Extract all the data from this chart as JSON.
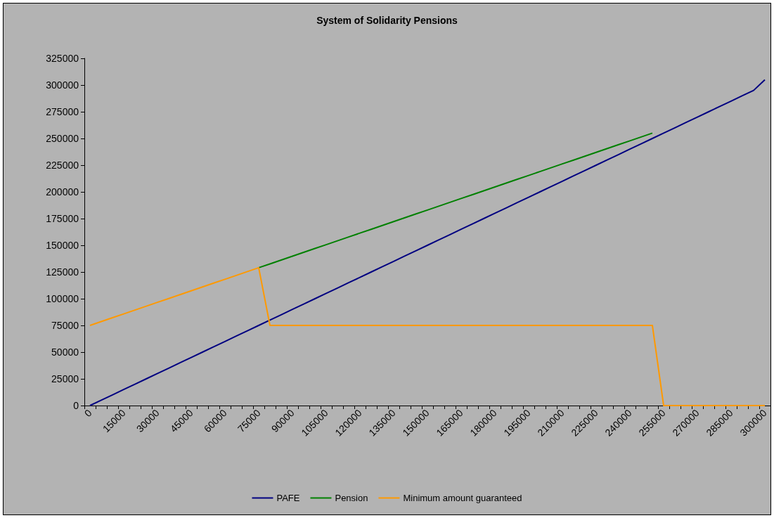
{
  "chart_data": {
    "type": "line",
    "title": "System of Solidarity Pensions",
    "categories": [
      "0",
      null,
      null,
      "15000",
      null,
      null,
      "30000",
      null,
      null,
      "45000",
      null,
      null,
      "60000",
      null,
      null,
      "75000",
      null,
      null,
      "90000",
      null,
      null,
      "105000",
      null,
      null,
      "120000",
      null,
      null,
      "135000",
      null,
      null,
      "150000",
      null,
      null,
      "165000",
      null,
      null,
      "180000",
      null,
      null,
      "195000",
      null,
      null,
      "210000",
      null,
      null,
      "225000",
      null,
      null,
      "240000",
      null,
      null,
      "255000",
      null,
      null,
      "270000",
      null,
      null,
      "285000",
      null,
      null,
      "300000"
    ],
    "series": [
      {
        "name": "PAFE",
        "color": "#000080",
        "values": [
          0,
          5000,
          10000,
          15000,
          20000,
          25000,
          30000,
          35000,
          40000,
          45000,
          50000,
          55000,
          60000,
          65000,
          70000,
          75000,
          80000,
          85000,
          90000,
          95000,
          100000,
          105000,
          110000,
          115000,
          120000,
          125000,
          130000,
          135000,
          140000,
          145000,
          150000,
          155000,
          160000,
          165000,
          170000,
          175000,
          180000,
          185000,
          190000,
          195000,
          200000,
          205000,
          210000,
          215000,
          220000,
          225000,
          230000,
          235000,
          240000,
          245000,
          250000,
          255000,
          260000,
          265000,
          270000,
          275000,
          280000,
          285000,
          290000,
          295000,
          305000
        ]
      },
      {
        "name": "Pension",
        "color": "#008000",
        "values": [
          null,
          null,
          null,
          null,
          null,
          null,
          null,
          null,
          null,
          null,
          null,
          null,
          null,
          null,
          null,
          129000,
          132600,
          136200,
          139800,
          143400,
          147000,
          150600,
          154200,
          157800,
          161400,
          165000,
          168600,
          172200,
          175800,
          179400,
          183000,
          186600,
          190200,
          193800,
          197400,
          201000,
          204600,
          208200,
          211800,
          215400,
          219000,
          222600,
          226200,
          229800,
          233400,
          237000,
          240600,
          244200,
          247800,
          251400,
          255000,
          null,
          null,
          null,
          null,
          null,
          null,
          null,
          null,
          null,
          null
        ]
      },
      {
        "name": "Minimum amount guaranteed",
        "color": "#ff9900",
        "values": [
          75000,
          78600,
          82200,
          85800,
          89400,
          93000,
          96600,
          100200,
          103800,
          107400,
          111000,
          114600,
          118200,
          121800,
          125400,
          129000,
          75000,
          75000,
          75000,
          75000,
          75000,
          75000,
          75000,
          75000,
          75000,
          75000,
          75000,
          75000,
          75000,
          75000,
          75000,
          75000,
          75000,
          75000,
          75000,
          75000,
          75000,
          75000,
          75000,
          75000,
          75000,
          75000,
          75000,
          75000,
          75000,
          75000,
          75000,
          75000,
          75000,
          75000,
          75000,
          0,
          0,
          0,
          0,
          0,
          0,
          0,
          0,
          0,
          0
        ]
      }
    ],
    "ylim": [
      0,
      325000
    ],
    "yticks": [
      0,
      25000,
      50000,
      75000,
      100000,
      125000,
      150000,
      175000,
      200000,
      225000,
      250000,
      275000,
      300000,
      325000
    ],
    "grid": false,
    "legend": "bottom",
    "marker": "none",
    "line_style": "solid"
  }
}
